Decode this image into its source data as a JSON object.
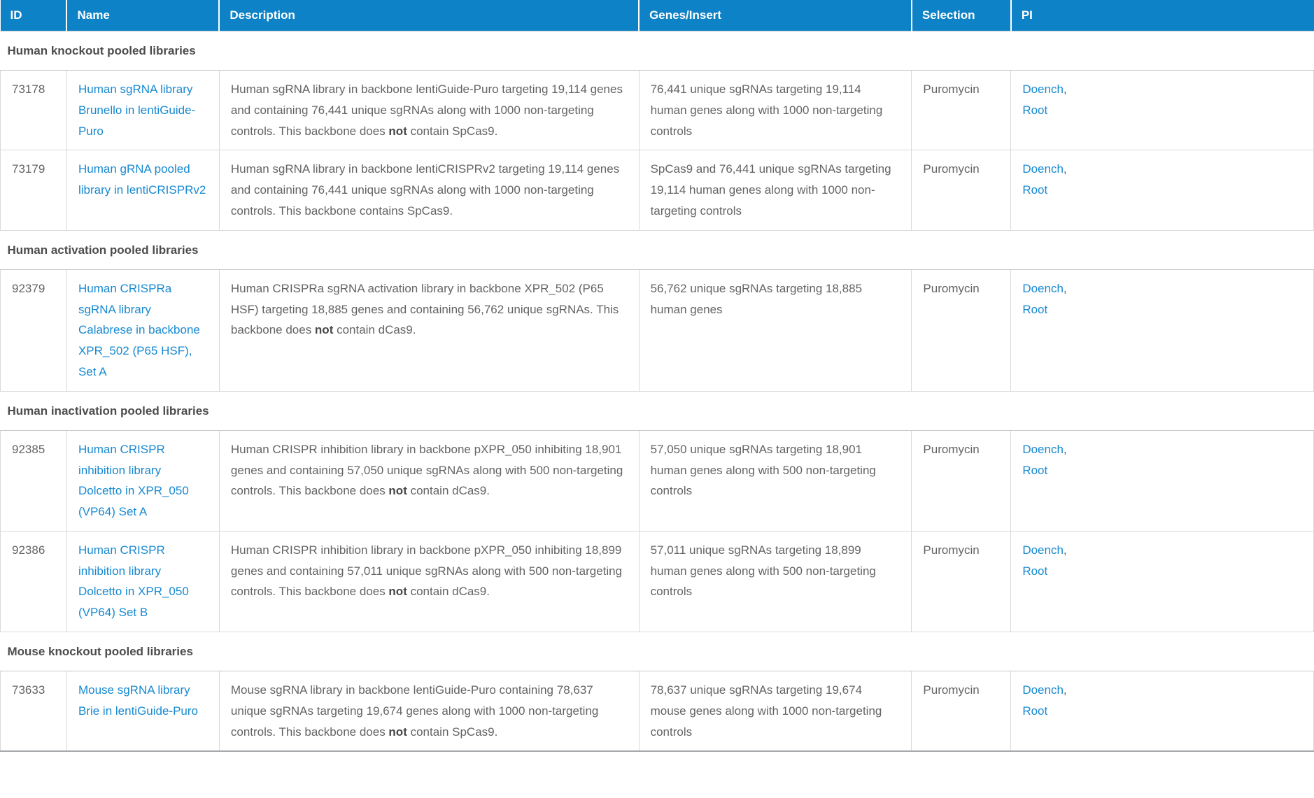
{
  "table": {
    "colors": {
      "header_bg": "#0e82c6",
      "header_text": "#ffffff",
      "link": "#1789d1",
      "body_text": "#646466",
      "section_text": "#4c4c4e",
      "border": "#d9d9d9"
    },
    "columns": [
      {
        "key": "id",
        "label": "ID"
      },
      {
        "key": "name",
        "label": "Name"
      },
      {
        "key": "description",
        "label": "Description"
      },
      {
        "key": "genes_insert",
        "label": "Genes/Insert"
      },
      {
        "key": "selection",
        "label": "Selection"
      },
      {
        "key": "pi",
        "label": "PI"
      }
    ],
    "sections": [
      {
        "title": "Human knockout pooled libraries",
        "rows": [
          {
            "id": "73178",
            "name": "Human sgRNA library Brunello in lentiGuide-Puro",
            "description": [
              {
                "text": "Human sgRNA library in backbone lentiGuide-Puro targeting 19,114 genes and containing 76,441 unique sgRNAs along with 1000 non-targeting controls. This backbone does "
              },
              {
                "text": "not",
                "bold": true
              },
              {
                "text": " contain SpCas9."
              }
            ],
            "genes_insert": "76,441 unique sgRNAs targeting 19,114 human genes along with 1000 non-targeting controls",
            "selection": "Puromycin",
            "pi": [
              "Doench",
              "Root"
            ]
          },
          {
            "id": "73179",
            "name": "Human gRNA pooled library in lentiCRISPRv2",
            "description": [
              {
                "text": "Human sgRNA library in backbone lentiCRISPRv2 targeting 19,114 genes and containing 76,441 unique sgRNAs along with 1000 non-targeting controls. This backbone contains SpCas9."
              }
            ],
            "genes_insert": "SpCas9 and 76,441 unique sgRNAs targeting 19,114 human genes along with 1000 non-targeting controls",
            "selection": "Puromycin",
            "pi": [
              "Doench",
              "Root"
            ]
          }
        ]
      },
      {
        "title": "Human activation pooled libraries",
        "rows": [
          {
            "id": "92379",
            "name": "Human CRISPRa sgRNA library Calabrese in backbone XPR_502 (P65 HSF), Set A",
            "description": [
              {
                "text": "Human CRISPRa sgRNA activation library in backbone XPR_502 (P65 HSF) targeting 18,885 genes and containing 56,762 unique sgRNAs. This backbone does "
              },
              {
                "text": "not",
                "bold": true
              },
              {
                "text": " contain dCas9."
              }
            ],
            "genes_insert": "56,762 unique sgRNAs targeting 18,885 human genes",
            "selection": "Puromycin",
            "pi": [
              "Doench",
              "Root"
            ]
          }
        ]
      },
      {
        "title": "Human inactivation pooled libraries",
        "rows": [
          {
            "id": "92385",
            "name": "Human CRISPR inhibition library Dolcetto in XPR_050 (VP64) Set A",
            "description": [
              {
                "text": "Human CRISPR inhibition library in backbone pXPR_050 inhibiting 18,901 genes and containing 57,050 unique sgRNAs along with 500 non-targeting controls. This backbone does "
              },
              {
                "text": "not",
                "bold": true
              },
              {
                "text": " contain dCas9."
              }
            ],
            "genes_insert": "57,050 unique sgRNAs targeting 18,901 human genes along with 500 non-targeting controls",
            "selection": "Puromycin",
            "pi": [
              "Doench",
              "Root"
            ]
          },
          {
            "id": "92386",
            "name": "Human CRISPR inhibition library Dolcetto in XPR_050 (VP64) Set B",
            "description": [
              {
                "text": "Human CRISPR inhibition library in backbone pXPR_050 inhibiting 18,899 genes and containing 57,011 unique sgRNAs along with 500 non-targeting controls. This backbone does "
              },
              {
                "text": "not",
                "bold": true
              },
              {
                "text": " contain dCas9."
              }
            ],
            "genes_insert": "57,011 unique sgRNAs targeting 18,899 human genes along with 500 non-targeting controls",
            "selection": "Puromycin",
            "pi": [
              "Doench",
              "Root"
            ]
          }
        ]
      },
      {
        "title": "Mouse knockout pooled libraries",
        "rows": [
          {
            "id": "73633",
            "name": "Mouse sgRNA library Brie in lentiGuide-Puro",
            "description": [
              {
                "text": "Mouse sgRNA library in backbone lentiGuide-Puro containing 78,637 unique sgRNAs targeting 19,674 genes along with 1000 non-targeting controls. This backbone does "
              },
              {
                "text": "not",
                "bold": true
              },
              {
                "text": " contain SpCas9."
              }
            ],
            "genes_insert": "78,637 unique sgRNAs targeting 19,674 mouse genes along with 1000 non-targeting controls",
            "selection": "Puromycin",
            "pi": [
              "Doench",
              "Root"
            ]
          }
        ]
      }
    ]
  }
}
